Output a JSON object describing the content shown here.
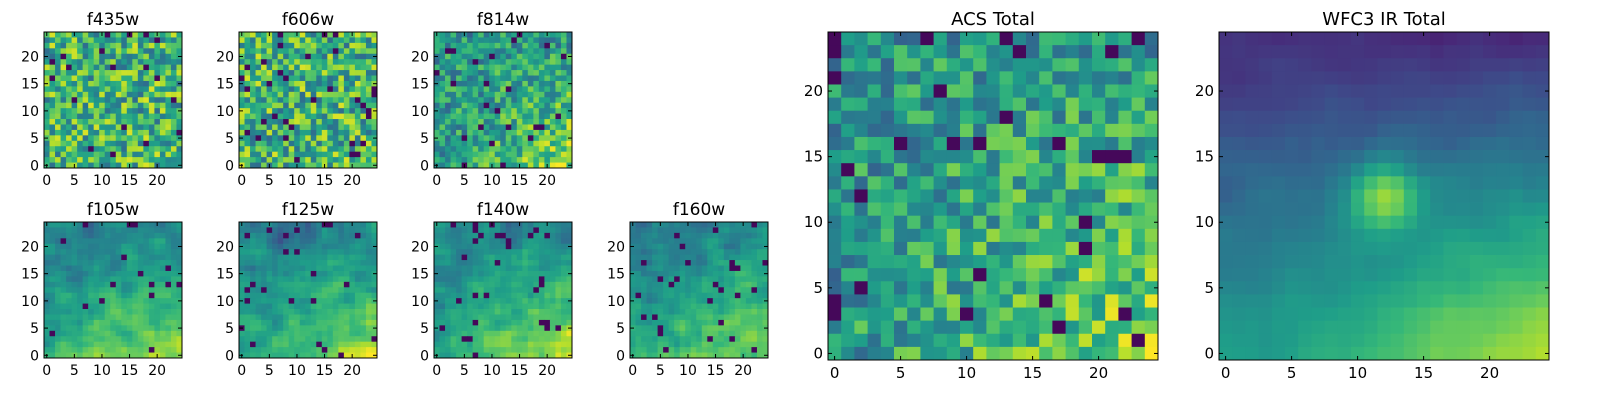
{
  "chart_data": [
    {
      "type": "heatmap",
      "title": "f435w",
      "xticks": [
        0,
        5,
        10,
        15,
        20
      ],
      "yticks": [
        0,
        5,
        10,
        15,
        20
      ],
      "grid_size": 25,
      "colormap": "viridis",
      "pattern": "noise"
    },
    {
      "type": "heatmap",
      "title": "f606w",
      "xticks": [
        0,
        5,
        10,
        15,
        20
      ],
      "yticks": [
        0,
        5,
        10,
        15,
        20
      ],
      "grid_size": 25,
      "colormap": "viridis",
      "pattern": "noise"
    },
    {
      "type": "heatmap",
      "title": "f814w",
      "xticks": [
        0,
        5,
        10,
        15,
        20
      ],
      "yticks": [
        0,
        5,
        10,
        15,
        20
      ],
      "grid_size": 25,
      "colormap": "viridis",
      "pattern": "noise-bright-lower-right"
    },
    {
      "type": "heatmap",
      "title": "f105w",
      "xticks": [
        0,
        5,
        10,
        15,
        20
      ],
      "yticks": [
        0,
        5,
        10,
        15,
        20
      ],
      "grid_size": 25,
      "colormap": "viridis",
      "pattern": "smooth-bright-lower-right"
    },
    {
      "type": "heatmap",
      "title": "f125w",
      "xticks": [
        0,
        5,
        10,
        15,
        20
      ],
      "yticks": [
        0,
        5,
        10,
        15,
        20
      ],
      "grid_size": 25,
      "colormap": "viridis",
      "pattern": "smooth-bright-lower-right"
    },
    {
      "type": "heatmap",
      "title": "f140w",
      "xticks": [
        0,
        5,
        10,
        15,
        20
      ],
      "yticks": [
        0,
        5,
        10,
        15,
        20
      ],
      "grid_size": 25,
      "colormap": "viridis",
      "pattern": "smooth-bright-lower-right"
    },
    {
      "type": "heatmap",
      "title": "f160w",
      "xticks": [
        0,
        5,
        10,
        15,
        20
      ],
      "yticks": [
        0,
        5,
        10,
        15,
        20
      ],
      "grid_size": 25,
      "colormap": "viridis",
      "pattern": "smooth-bright-lower-right"
    },
    {
      "type": "heatmap",
      "title": "ACS Total",
      "xticks": [
        0,
        5,
        10,
        15,
        20
      ],
      "yticks": [
        0,
        5,
        10,
        15,
        20
      ],
      "grid_size": 25,
      "colormap": "viridis",
      "pattern": "noise-bright-lower-right"
    },
    {
      "type": "heatmap",
      "title": "WFC3 IR Total",
      "xticks": [
        0,
        5,
        10,
        15,
        20
      ],
      "yticks": [
        0,
        5,
        10,
        15,
        20
      ],
      "grid_size": 25,
      "colormap": "viridis",
      "pattern": "smooth-gradient-dark-top-bright-lower-right"
    }
  ]
}
